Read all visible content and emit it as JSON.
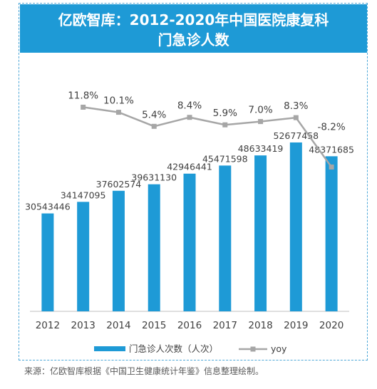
{
  "title": {
    "line1": "亿欧智库：2012-2020年中国医院康复科",
    "line2": "门急诊人数"
  },
  "source": "来源：亿欧智库根据《中国卫生健康统计年鉴》信息整理绘制。",
  "colors": {
    "bar": "#1e9ad6",
    "line": "#a6a6a6",
    "title_bg": "#1e9ad6",
    "frame": "#4ea8d8"
  },
  "chart_data": {
    "type": "bar",
    "categories": [
      "2012",
      "2013",
      "2014",
      "2015",
      "2016",
      "2017",
      "2018",
      "2019",
      "2020"
    ],
    "series": [
      {
        "name": "门急诊人次数（人次）",
        "type": "bar",
        "values": [
          30543446,
          34147095,
          37602574,
          39631130,
          42946441,
          45471598,
          48633419,
          52677458,
          48371685
        ],
        "labels": [
          "30543446",
          "34147095",
          "37602574",
          "39631130",
          "42946441",
          "45471598",
          "48633419",
          "52677458",
          "48371685"
        ]
      },
      {
        "name": "yoy",
        "type": "line",
        "values": [
          null,
          11.8,
          10.1,
          5.4,
          8.4,
          5.9,
          7.0,
          8.3,
          -8.2
        ],
        "labels": [
          "",
          "11.8%",
          "10.1%",
          "5.4%",
          "8.4%",
          "5.9%",
          "7.0%",
          "8.3%",
          "-8.2%"
        ]
      }
    ],
    "legend_position": "bottom",
    "grid": false
  }
}
